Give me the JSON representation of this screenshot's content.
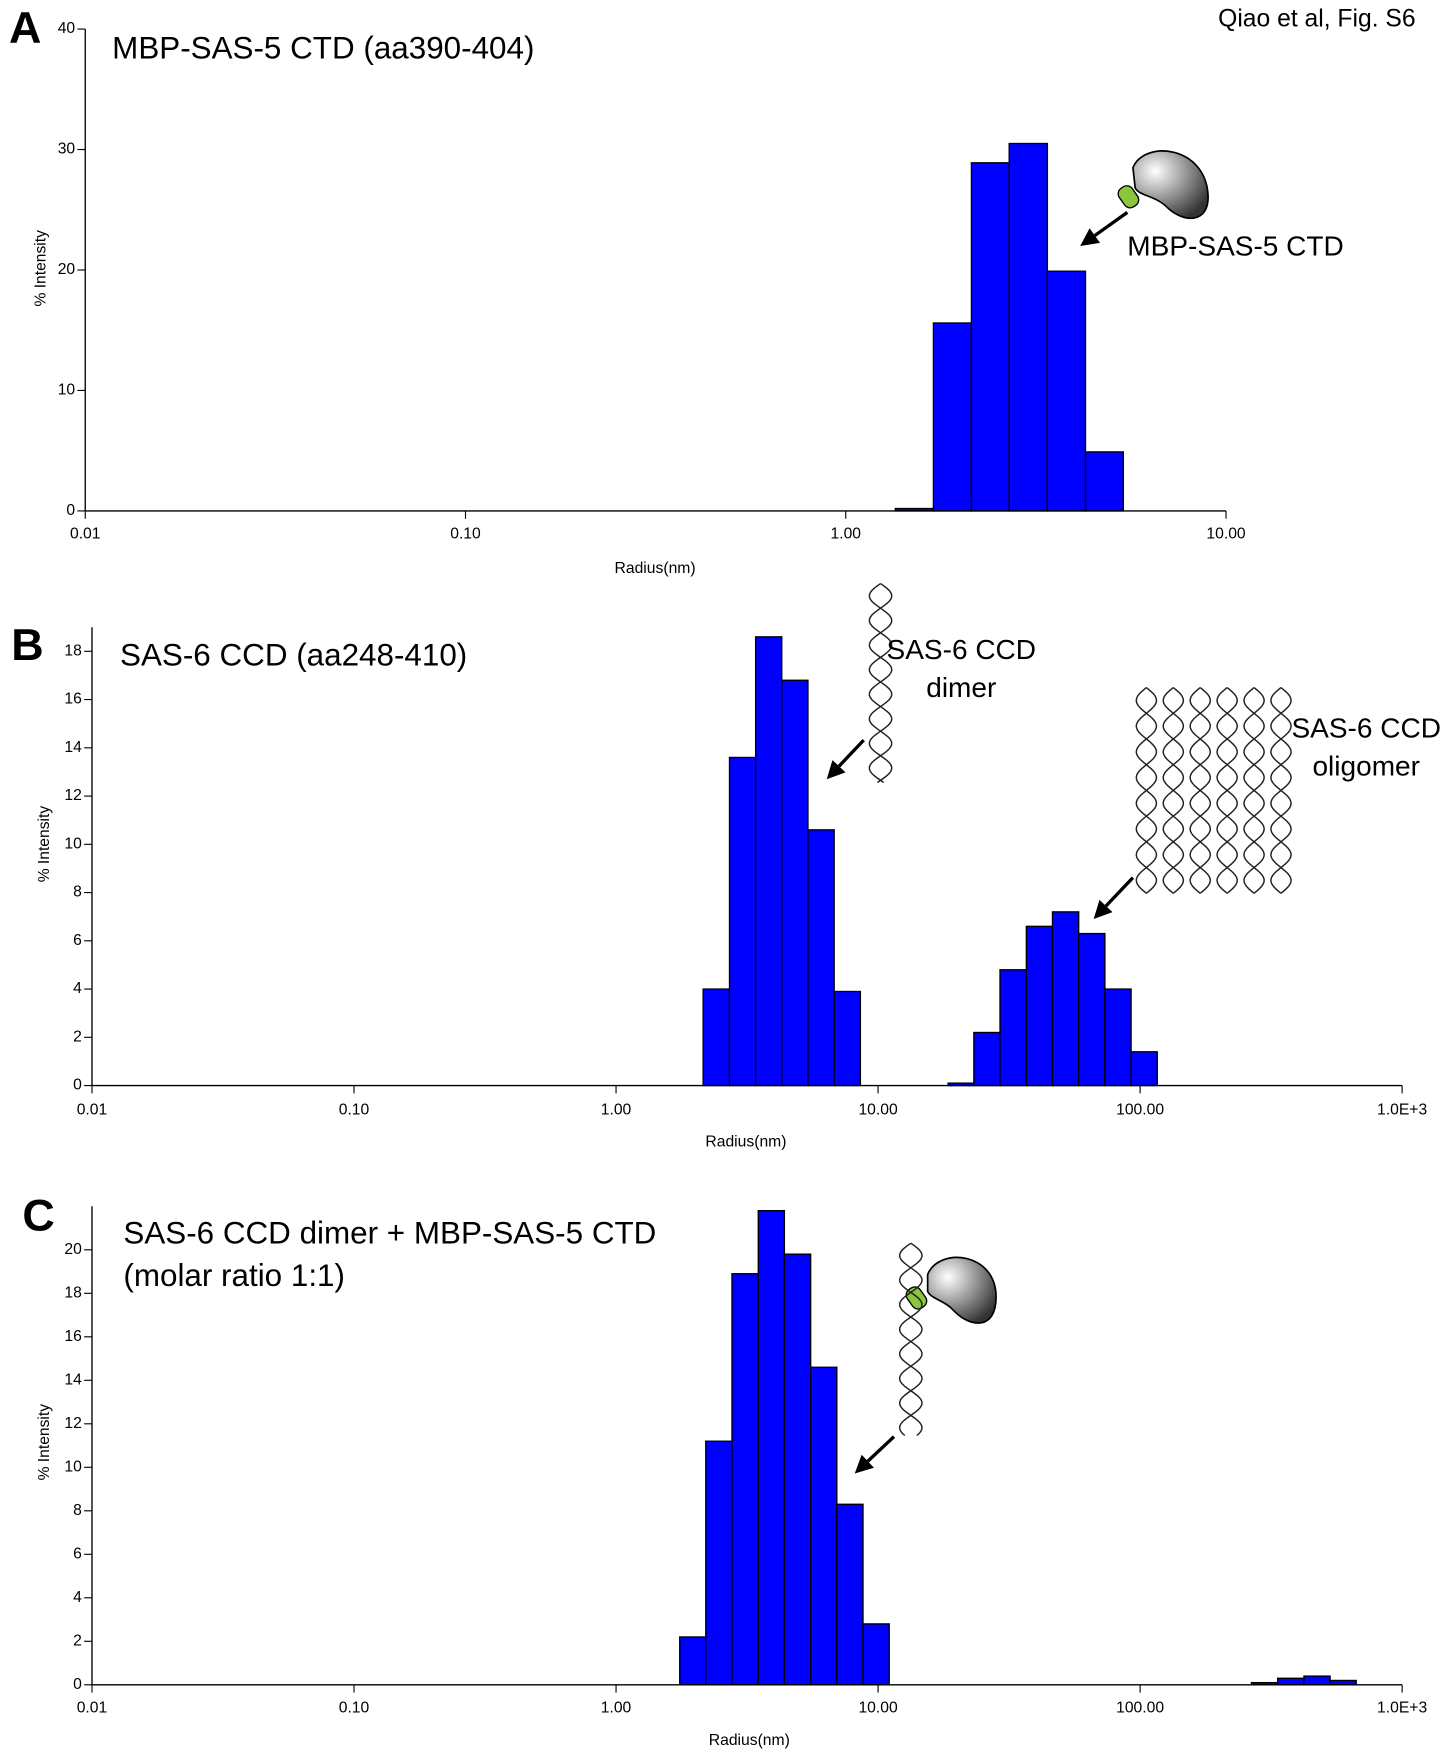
{
  "credit": "Qiao et al, Fig. S6",
  "chart_data": [
    {
      "type": "histogram",
      "panel_label": "A",
      "title": "MBP-SAS-5 CTD (aa390-404)",
      "x_label": "Radius(nm)",
      "y_label": "% Intensity",
      "log_x": true,
      "color": "#0000ff",
      "bins": [
        1.35,
        1.7,
        2.14,
        2.69,
        3.39,
        4.27,
        5.37
      ],
      "values": [
        0.2,
        15.6,
        28.9,
        30.5,
        19.9,
        4.9
      ],
      "xlim": [
        0.01,
        10
      ],
      "xticks": [
        0.01,
        {
          "value": 0.1,
          "label": "0.10"
        },
        {
          "value": 1,
          "label": "1.00"
        },
        {
          "value": 10,
          "label": "10.00"
        }
      ],
      "ylim": [
        0,
        40
      ],
      "yticks": [
        0,
        10,
        20,
        30,
        40
      ],
      "annotations": [
        {
          "text": [
            "MBP-SAS-5 CTD"
          ]
        }
      ]
    },
    {
      "type": "histogram",
      "panel_label": "B",
      "title": "SAS-6 CCD (aa248-410)",
      "x_label": "Radius(nm)",
      "y_label": "% Intensity",
      "log_x": true,
      "color": "#0000ff",
      "bins": [
        2.15,
        2.71,
        3.41,
        4.29,
        5.4,
        6.8,
        8.56,
        18.5,
        23.2,
        29.2,
        36.8,
        46.3,
        58.3,
        73.4,
        92.4,
        116.3
      ],
      "values": [
        4.0,
        13.6,
        18.6,
        16.8,
        10.6,
        3.9,
        0,
        0.1,
        2.2,
        4.8,
        6.6,
        7.2,
        6.3,
        4.0,
        1.4
      ],
      "xlim": [
        0.01,
        1000
      ],
      "xticks": [
        0.01,
        {
          "value": 0.1,
          "label": "0.10"
        },
        {
          "value": 1,
          "label": "1.00"
        },
        {
          "value": 10,
          "label": "10.00"
        },
        {
          "value": 100,
          "label": "100.00"
        },
        {
          "value": 1000,
          "label": "1.0E+3"
        }
      ],
      "ylim": [
        0,
        19
      ],
      "yticks": [
        0,
        2,
        4,
        6,
        8,
        10,
        12,
        14,
        16,
        18
      ],
      "annotations": [
        {
          "text": [
            "SAS-6 CCD",
            "dimer"
          ]
        },
        {
          "text": [
            "SAS-6 CCD",
            "oligomer"
          ]
        }
      ]
    },
    {
      "type": "histogram",
      "panel_label": "C",
      "title": [
        "SAS-6 CCD dimer + MBP-SAS-5 CTD",
        "(molar ratio 1:1)"
      ],
      "x_label": "Radius(nm)",
      "y_label": "% Intensity",
      "log_x": true,
      "color": "#0000ff",
      "bins": [
        1.75,
        2.2,
        2.77,
        3.49,
        4.39,
        5.53,
        6.96,
        8.76,
        11.03,
        266,
        335,
        422,
        531,
        668
      ],
      "values": [
        2.2,
        11.2,
        18.9,
        21.8,
        19.8,
        14.6,
        8.3,
        2.8,
        0,
        0.1,
        0.3,
        0.4,
        0.2
      ],
      "xlim": [
        0.01,
        1000
      ],
      "xticks": [
        0.01,
        {
          "value": 0.1,
          "label": "0.10"
        },
        {
          "value": 1,
          "label": "1.00"
        },
        {
          "value": 10,
          "label": "10.00"
        },
        {
          "value": 100,
          "label": "100.00"
        },
        {
          "value": 1000,
          "label": "1.0E+3"
        }
      ],
      "ylim": [
        0,
        22
      ],
      "yticks": [
        0,
        2,
        4,
        6,
        8,
        10,
        12,
        14,
        16,
        18,
        20
      ],
      "annotations": []
    }
  ]
}
